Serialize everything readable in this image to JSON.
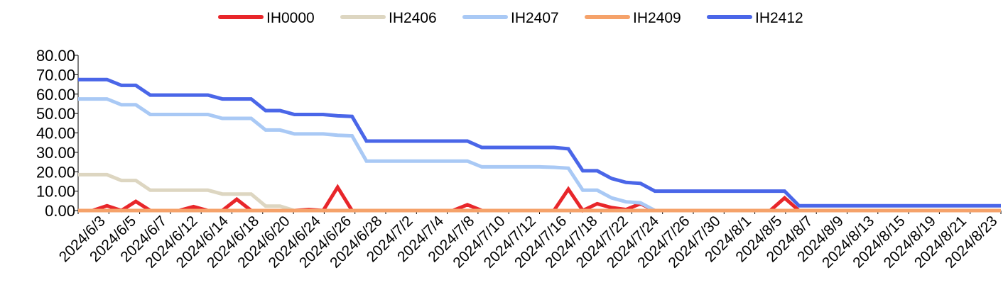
{
  "chart_data": {
    "type": "line",
    "title": "",
    "xlabel": "",
    "ylabel": "",
    "ylim": [
      0,
      80
    ],
    "y_ticks": [
      "0.00",
      "10.00",
      "20.00",
      "30.00",
      "40.00",
      "50.00",
      "60.00",
      "70.00",
      "80.00"
    ],
    "x_tick_labels": [
      "2024/6/3",
      "2024/6/5",
      "2024/6/7",
      "2024/6/12",
      "2024/6/14",
      "2024/6/18",
      "2024/6/20",
      "2024/6/24",
      "2024/6/26",
      "2024/6/28",
      "2024/7/2",
      "2024/7/4",
      "2024/7/8",
      "2024/7/10",
      "2024/7/12",
      "2024/7/16",
      "2024/7/18",
      "2024/7/22",
      "2024/7/24",
      "2024/7/26",
      "2024/7/30",
      "2024/8/1",
      "2024/8/5",
      "2024/8/7",
      "2024/8/9",
      "2024/8/13",
      "2024/8/15",
      "2024/8/19",
      "2024/8/21",
      "2024/8/23"
    ],
    "legend_position": "top",
    "grid": false,
    "series": [
      {
        "name": "IH0000",
        "color": "#e8262a",
        "values": [
          0,
          0,
          2.5,
          0,
          4.7,
          0,
          0,
          0,
          2,
          0,
          0,
          5.8,
          0,
          0,
          0,
          0,
          0.5,
          0,
          12,
          0,
          0,
          0,
          0,
          0,
          0,
          0,
          0,
          3,
          0,
          0,
          0,
          0,
          0,
          0,
          11,
          0,
          3.5,
          1.5,
          0.5,
          3.5,
          0,
          0,
          0,
          0,
          0,
          0,
          0,
          0,
          0,
          6.5,
          0,
          0,
          0,
          0,
          0,
          0,
          0,
          0,
          0,
          0,
          0,
          0,
          0,
          0,
          0
        ]
      },
      {
        "name": "IH2406",
        "color": "#ddd6c1",
        "values": [
          18.5,
          18.5,
          18.5,
          15.5,
          15.5,
          10.5,
          10.5,
          10.5,
          10.5,
          10.5,
          8.5,
          8.5,
          8.5,
          2.3,
          2.3,
          0,
          0,
          0,
          0,
          0,
          0,
          0,
          0,
          0,
          0,
          0,
          0,
          0,
          0,
          0,
          0,
          0,
          0,
          0,
          0,
          0,
          0,
          0,
          0,
          0,
          0,
          0,
          0,
          0,
          0,
          0,
          0,
          0,
          0,
          0,
          0,
          0,
          0,
          0,
          0,
          0,
          0,
          0,
          0,
          0,
          0,
          0,
          0,
          0,
          0
        ]
      },
      {
        "name": "IH2407",
        "color": "#a9c9f5",
        "values": [
          57.5,
          57.5,
          57.5,
          54.5,
          54.5,
          49.5,
          49.5,
          49.5,
          49.5,
          49.5,
          47.5,
          47.5,
          47.5,
          41.5,
          41.5,
          39.5,
          39.5,
          39.5,
          38.8,
          38.5,
          25.5,
          25.5,
          25.5,
          25.5,
          25.5,
          25.5,
          25.5,
          25.5,
          22.5,
          22.5,
          22.5,
          22.5,
          22.5,
          22.3,
          21.8,
          10.5,
          10.5,
          6.5,
          4.5,
          4,
          0,
          0,
          0,
          0,
          0,
          0,
          0,
          0,
          0,
          0,
          0,
          0,
          0,
          0,
          0,
          0,
          0,
          0,
          0,
          0,
          0,
          0,
          0,
          0,
          0
        ]
      },
      {
        "name": "IH2409",
        "color": "#f5a26a",
        "values": [
          0,
          0,
          0,
          0,
          0,
          0,
          0,
          0,
          0,
          0,
          0,
          0,
          0,
          0,
          0,
          0,
          0,
          0,
          0,
          0,
          0,
          0,
          0,
          0,
          0,
          0,
          0,
          0,
          0,
          0,
          0,
          0,
          0,
          0,
          0,
          0,
          0,
          0,
          0,
          0,
          0,
          0,
          0,
          0,
          0,
          0,
          0,
          0,
          0,
          0,
          0,
          0,
          0,
          0,
          0,
          0,
          0,
          0,
          0,
          0,
          0,
          0,
          0,
          0,
          0
        ]
      },
      {
        "name": "IH2412",
        "color": "#4a66e8",
        "values": [
          67.5,
          67.5,
          67.5,
          64.5,
          64.5,
          59.5,
          59.5,
          59.5,
          59.5,
          59.5,
          57.5,
          57.5,
          57.5,
          51.5,
          51.5,
          49.5,
          49.5,
          49.5,
          48.8,
          48.5,
          35.8,
          35.8,
          35.8,
          35.8,
          35.8,
          35.8,
          35.8,
          35.8,
          32.5,
          32.5,
          32.5,
          32.5,
          32.5,
          32.5,
          31.8,
          20.5,
          20.5,
          16.5,
          14.5,
          14,
          10,
          10,
          10,
          10,
          10,
          10,
          10,
          10,
          10,
          10,
          2.5,
          2.5,
          2.5,
          2.5,
          2.5,
          2.5,
          2.5,
          2.5,
          2.5,
          2.5,
          2.5,
          2.5,
          2.5,
          2.5,
          2.5
        ]
      }
    ]
  }
}
